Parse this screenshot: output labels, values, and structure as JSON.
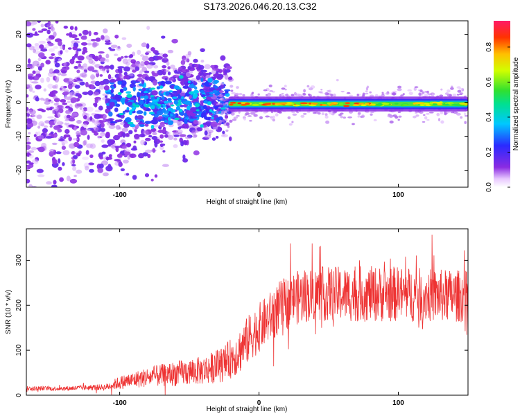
{
  "title": "S173.2026.046.20.13.C32",
  "chart_data": [
    {
      "type": "heatmap",
      "xlabel": "Height of straight line (km)",
      "ylabel": "Frequency (Hz)",
      "xlim": [
        -167,
        150
      ],
      "ylim": [
        -25,
        24
      ],
      "xticks": [
        -100,
        0,
        100
      ],
      "yticks": [
        20,
        10,
        0,
        -10,
        -20
      ],
      "xtick_labels": [
        "-100",
        "0",
        "100"
      ],
      "ytick_labels": [
        "20",
        "10",
        "0",
        "-10",
        "-20"
      ],
      "colorbar": {
        "label": "Normalized spectral amplitude",
        "range": [
          0.0,
          0.95
        ],
        "ticks": [
          0.0,
          0.2,
          0.4,
          0.6,
          0.8
        ],
        "tick_labels": [
          "0.0",
          "0.2",
          "0.4",
          "0.6",
          "0.8"
        ]
      },
      "ridge": {
        "frequency_hz": -0.5,
        "start_km": -30,
        "end_km": 150,
        "peak_amplitude": 0.9
      },
      "scatter_region": {
        "from_km": -167,
        "to_km": -30,
        "frequency_spread_hz": [
          -25,
          24
        ]
      }
    },
    {
      "type": "line",
      "xlabel": "Height of straight line (km)",
      "ylabel": "SNR (10 * v/v)",
      "xlim": [
        -167,
        150
      ],
      "ylim": [
        0,
        370
      ],
      "xticks": [
        -100,
        0,
        100
      ],
      "yticks": [
        0,
        100,
        200,
        300
      ],
      "xtick_labels": [
        "-100",
        "0",
        "100"
      ],
      "ytick_labels": [
        "0",
        "100",
        "200",
        "300"
      ],
      "series": [
        {
          "name": "SNR",
          "color": "#ee3333",
          "trend_x": [
            -167,
            -140,
            -110,
            -100,
            -80,
            -60,
            -40,
            -25,
            -15,
            -5,
            5,
            15,
            25,
            40,
            60,
            80,
            100,
            120,
            150
          ],
          "trend_y": [
            15,
            15,
            18,
            28,
            40,
            48,
            55,
            70,
            95,
            135,
            165,
            195,
            215,
            225,
            225,
            225,
            225,
            222,
            220
          ],
          "noise_amplitude": [
            5,
            5,
            7,
            15,
            22,
            28,
            32,
            40,
            50,
            55,
            55,
            60,
            60,
            60,
            62,
            62,
            62,
            60,
            58
          ]
        }
      ]
    }
  ]
}
